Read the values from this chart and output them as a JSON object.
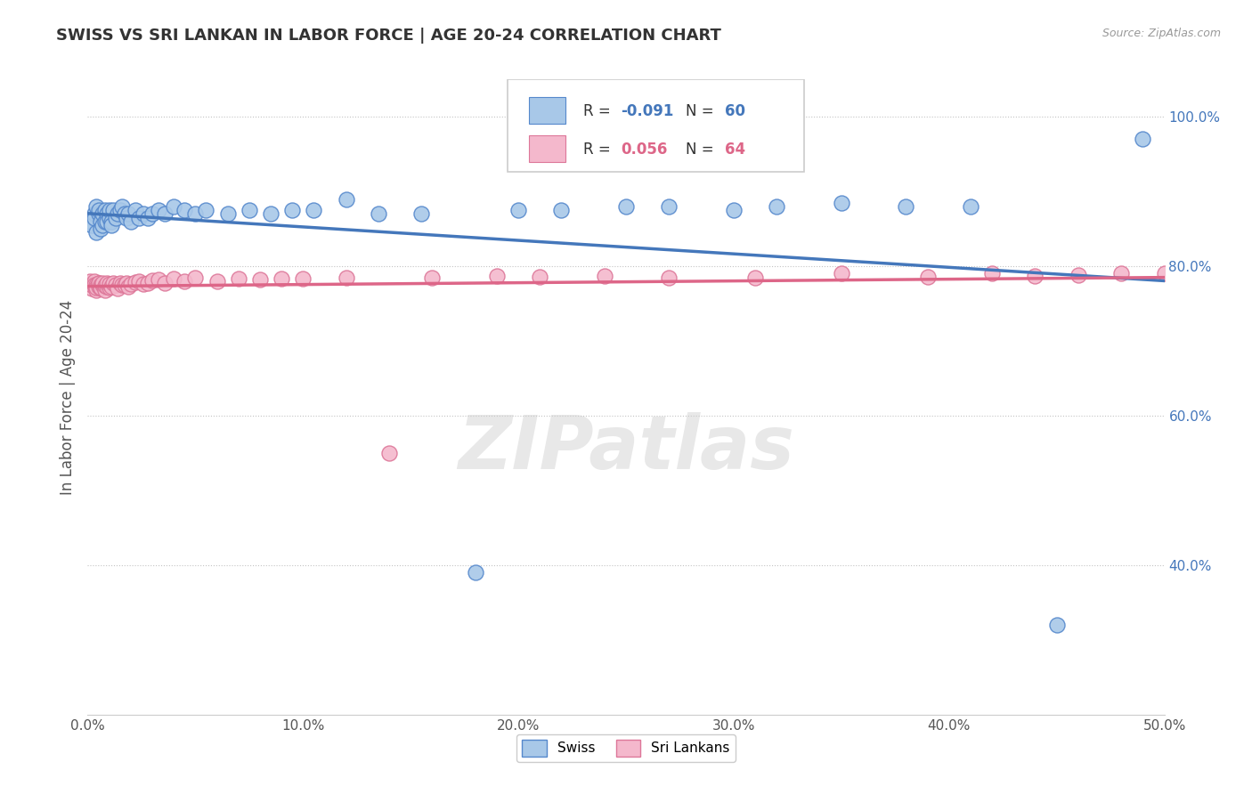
{
  "title": "SWISS VS SRI LANKAN IN LABOR FORCE | AGE 20-24 CORRELATION CHART",
  "source_text": "Source: ZipAtlas.com",
  "ylabel": "In Labor Force | Age 20-24",
  "xlim": [
    0.0,
    0.5
  ],
  "ylim": [
    0.2,
    1.05
  ],
  "xticks": [
    0.0,
    0.1,
    0.2,
    0.3,
    0.4,
    0.5
  ],
  "xtick_labels": [
    "0.0%",
    "10.0%",
    "20.0%",
    "30.0%",
    "40.0%",
    "50.0%"
  ],
  "yticks": [
    0.4,
    0.6,
    0.8,
    1.0
  ],
  "ytick_labels": [
    "40.0%",
    "60.0%",
    "80.0%",
    "100.0%"
  ],
  "swiss_R": -0.091,
  "swiss_N": 60,
  "srilanka_R": 0.056,
  "srilanka_N": 64,
  "swiss_color": "#a8c8e8",
  "srilanka_color": "#f4b8cc",
  "swiss_line_color": "#4477bb",
  "srilanka_line_color": "#dd6688",
  "swiss_edge_color": "#5588cc",
  "srilanka_edge_color": "#dd7799",
  "watermark": "ZIPatlas",
  "legend_swiss_label": "Swiss",
  "legend_srilanka_label": "Sri Lankans",
  "swiss_x": [
    0.001,
    0.002,
    0.003,
    0.003,
    0.004,
    0.004,
    0.005,
    0.005,
    0.006,
    0.006,
    0.007,
    0.007,
    0.008,
    0.008,
    0.009,
    0.009,
    0.01,
    0.01,
    0.011,
    0.011,
    0.012,
    0.013,
    0.014,
    0.015,
    0.016,
    0.017,
    0.018,
    0.019,
    0.02,
    0.022,
    0.024,
    0.026,
    0.028,
    0.03,
    0.033,
    0.036,
    0.04,
    0.045,
    0.05,
    0.055,
    0.065,
    0.075,
    0.085,
    0.095,
    0.105,
    0.12,
    0.135,
    0.155,
    0.18,
    0.2,
    0.22,
    0.25,
    0.27,
    0.3,
    0.32,
    0.35,
    0.38,
    0.41,
    0.45,
    0.49
  ],
  "swiss_y": [
    0.86,
    0.855,
    0.87,
    0.865,
    0.88,
    0.845,
    0.87,
    0.875,
    0.86,
    0.85,
    0.87,
    0.855,
    0.875,
    0.86,
    0.87,
    0.86,
    0.865,
    0.875,
    0.86,
    0.855,
    0.875,
    0.865,
    0.87,
    0.875,
    0.88,
    0.87,
    0.865,
    0.87,
    0.86,
    0.875,
    0.865,
    0.87,
    0.865,
    0.87,
    0.875,
    0.87,
    0.88,
    0.875,
    0.87,
    0.875,
    0.87,
    0.875,
    0.87,
    0.875,
    0.875,
    0.89,
    0.87,
    0.87,
    0.39,
    0.875,
    0.875,
    0.88,
    0.88,
    0.875,
    0.88,
    0.885,
    0.88,
    0.88,
    0.32,
    0.97
  ],
  "srilanka_x": [
    0.001,
    0.001,
    0.002,
    0.002,
    0.003,
    0.003,
    0.003,
    0.004,
    0.004,
    0.004,
    0.005,
    0.005,
    0.005,
    0.006,
    0.006,
    0.006,
    0.007,
    0.007,
    0.008,
    0.008,
    0.009,
    0.009,
    0.01,
    0.01,
    0.011,
    0.012,
    0.013,
    0.014,
    0.015,
    0.016,
    0.017,
    0.018,
    0.019,
    0.02,
    0.022,
    0.024,
    0.026,
    0.028,
    0.03,
    0.033,
    0.036,
    0.04,
    0.045,
    0.05,
    0.06,
    0.07,
    0.08,
    0.09,
    0.1,
    0.12,
    0.14,
    0.16,
    0.19,
    0.21,
    0.24,
    0.27,
    0.31,
    0.35,
    0.39,
    0.42,
    0.44,
    0.46,
    0.48,
    0.5
  ],
  "srilanka_y": [
    0.775,
    0.78,
    0.77,
    0.775,
    0.775,
    0.78,
    0.775,
    0.768,
    0.775,
    0.772,
    0.778,
    0.773,
    0.777,
    0.77,
    0.775,
    0.772,
    0.775,
    0.778,
    0.768,
    0.774,
    0.773,
    0.777,
    0.771,
    0.776,
    0.773,
    0.778,
    0.775,
    0.77,
    0.778,
    0.775,
    0.775,
    0.778,
    0.773,
    0.776,
    0.779,
    0.78,
    0.776,
    0.778,
    0.781,
    0.782,
    0.778,
    0.783,
    0.78,
    0.785,
    0.78,
    0.783,
    0.782,
    0.784,
    0.783,
    0.785,
    0.55,
    0.785,
    0.787,
    0.786,
    0.787,
    0.785,
    0.785,
    0.79,
    0.786,
    0.79,
    0.787,
    0.788,
    0.79,
    0.79
  ]
}
